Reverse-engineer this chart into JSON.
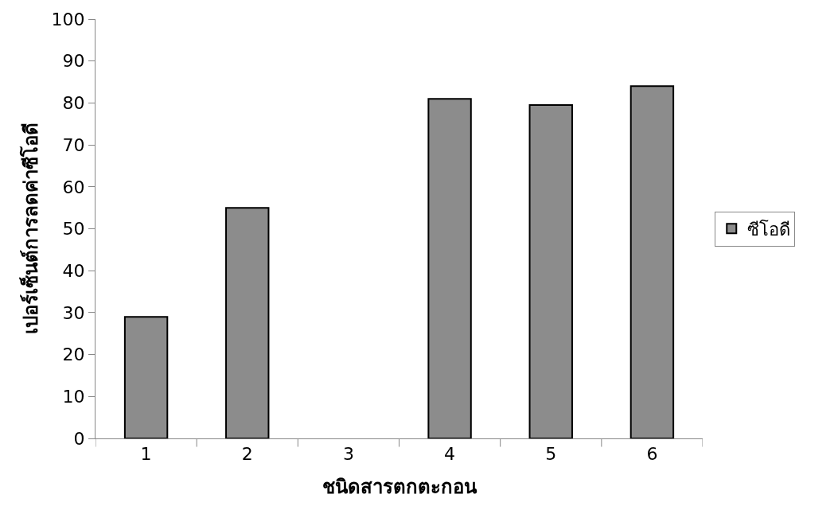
{
  "chart_data": {
    "type": "bar",
    "xlabel": "ชนิดสารตกตะกอน",
    "ylabel": "เปอร์เซ็นต์การลดค่าซีโอดี",
    "categories": [
      "1",
      "2",
      "3",
      "4",
      "5",
      "6"
    ],
    "series": [
      {
        "name": "ซีโอดี",
        "color": "#8c8c8c",
        "values": [
          29,
          55,
          null,
          81,
          79.5,
          84
        ]
      }
    ],
    "ylim": [
      0,
      100
    ],
    "yticks": [
      0,
      10,
      20,
      30,
      40,
      50,
      60,
      70,
      80,
      90,
      100
    ],
    "legend": "right"
  }
}
